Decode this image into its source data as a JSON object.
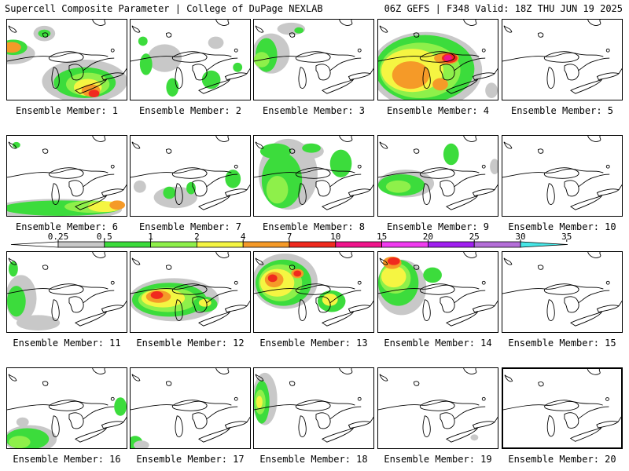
{
  "header": {
    "left_title": "Supercell Composite Parameter | College of DuPage NEXLAB",
    "right_title": "06Z GEFS | F348 Valid: 18Z THU JUN 19 2025"
  },
  "member_label_prefix": "Ensemble Member: ",
  "colorbar": {
    "ticks": [
      "0.25",
      "0.5",
      "1",
      "2",
      "4",
      "7",
      "10",
      "15",
      "20",
      "25",
      "30",
      "35"
    ],
    "colors": [
      "#c8c8c8",
      "#3cdc3c",
      "#8ef04a",
      "#f5f542",
      "#f59a28",
      "#f02a1e",
      "#f0148c",
      "#f03cf0",
      "#a020f0",
      "#b46ed8",
      "#46e6e6"
    ]
  },
  "palette": {
    "gray": "#c8c8c8",
    "green": "#3cdc3c",
    "lightgreen": "#8ef04a",
    "yellow": "#f5f542",
    "orange": "#f59a28",
    "red": "#f02a1e",
    "magenta": "#f0148c"
  },
  "members": [
    {
      "id": "1",
      "highlight": false,
      "blobs": [
        [
          "gray",
          6,
          44,
          30,
          14
        ],
        [
          "green",
          8,
          36,
          18,
          10
        ],
        [
          "orange",
          6,
          36,
          12,
          7
        ],
        [
          "gray",
          100,
          80,
          55,
          28
        ],
        [
          "green",
          100,
          82,
          40,
          20
        ],
        [
          "lightgreen",
          104,
          84,
          28,
          15
        ],
        [
          "yellow",
          104,
          88,
          18,
          11
        ],
        [
          "orange",
          108,
          92,
          12,
          8
        ],
        [
          "red",
          112,
          96,
          7,
          5
        ],
        [
          "gray",
          48,
          18,
          14,
          10
        ],
        [
          "green",
          48,
          18,
          8,
          5
        ]
      ]
    },
    {
      "id": "2",
      "highlight": false,
      "blobs": [
        [
          "gray",
          44,
          50,
          22,
          18
        ],
        [
          "green",
          20,
          58,
          8,
          14
        ],
        [
          "green",
          54,
          88,
          8,
          12
        ],
        [
          "green",
          104,
          78,
          12,
          12
        ],
        [
          "green",
          16,
          28,
          6,
          6
        ],
        [
          "green",
          138,
          62,
          6,
          6
        ],
        [
          "gray",
          110,
          30,
          10,
          8
        ]
      ]
    },
    {
      "id": "3",
      "highlight": false,
      "blobs": [
        [
          "gray",
          22,
          44,
          24,
          26
        ],
        [
          "green",
          16,
          46,
          14,
          22
        ],
        [
          "lightgreen",
          10,
          52,
          10,
          10
        ],
        [
          "gray",
          48,
          12,
          18,
          8
        ],
        [
          "green",
          58,
          14,
          6,
          4
        ]
      ]
    },
    {
      "id": "4",
      "highlight": false,
      "blobs": [
        [
          "gray",
          62,
          66,
          72,
          50
        ],
        [
          "green",
          60,
          64,
          64,
          44
        ],
        [
          "lightgreen",
          54,
          66,
          52,
          36
        ],
        [
          "yellow",
          44,
          66,
          40,
          28
        ],
        [
          "orange",
          42,
          72,
          24,
          18
        ],
        [
          "orange",
          88,
          50,
          16,
          8
        ],
        [
          "red",
          92,
          50,
          10,
          6
        ],
        [
          "orange",
          80,
          84,
          10,
          8
        ],
        [
          "magenta",
          90,
          50,
          5,
          4
        ],
        [
          "gray",
          146,
          92,
          8,
          10
        ]
      ]
    },
    {
      "id": "5",
      "highlight": false,
      "blobs": []
    },
    {
      "id": "6",
      "highlight": false,
      "blobs": [
        [
          "gray",
          64,
          96,
          84,
          14
        ],
        [
          "green",
          70,
          94,
          76,
          10
        ],
        [
          "lightgreen",
          110,
          92,
          36,
          8
        ],
        [
          "yellow",
          126,
          92,
          22,
          7
        ],
        [
          "orange",
          142,
          90,
          10,
          6
        ],
        [
          "green",
          12,
          12,
          5,
          4
        ]
      ]
    },
    {
      "id": "7",
      "highlight": false,
      "blobs": [
        [
          "gray",
          58,
          80,
          28,
          14
        ],
        [
          "green",
          50,
          74,
          8,
          8
        ],
        [
          "green",
          78,
          68,
          6,
          8
        ],
        [
          "green",
          132,
          56,
          10,
          12
        ],
        [
          "gray",
          12,
          66,
          8,
          8
        ]
      ]
    },
    {
      "id": "8",
      "highlight": false,
      "blobs": [
        [
          "gray",
          44,
          50,
          38,
          46
        ],
        [
          "green",
          36,
          58,
          26,
          36
        ],
        [
          "lightgreen",
          30,
          70,
          14,
          18
        ],
        [
          "green",
          28,
          20,
          20,
          10
        ],
        [
          "green",
          112,
          36,
          14,
          18
        ],
        [
          "gray",
          72,
          20,
          18,
          10
        ],
        [
          "green",
          74,
          16,
          12,
          6
        ]
      ]
    },
    {
      "id": "9",
      "highlight": false,
      "blobs": [
        [
          "gray",
          36,
          62,
          36,
          18
        ],
        [
          "green",
          30,
          64,
          30,
          14
        ],
        [
          "lightgreen",
          26,
          66,
          16,
          8
        ],
        [
          "green",
          94,
          24,
          10,
          14
        ],
        [
          "gray",
          150,
          40,
          6,
          10
        ]
      ]
    },
    {
      "id": "10",
      "highlight": false,
      "blobs": []
    },
    {
      "id": "11",
      "highlight": false,
      "blobs": [
        [
          "gray",
          18,
          60,
          20,
          30
        ],
        [
          "green",
          12,
          64,
          12,
          20
        ],
        [
          "gray",
          40,
          92,
          28,
          10
        ],
        [
          "green",
          8,
          22,
          6,
          10
        ]
      ]
    },
    {
      "id": "12",
      "highlight": false,
      "blobs": [
        [
          "gray",
          56,
          62,
          58,
          28
        ],
        [
          "green",
          50,
          62,
          48,
          22
        ],
        [
          "lightgreen",
          48,
          62,
          38,
          16
        ],
        [
          "yellow",
          42,
          60,
          28,
          12
        ],
        [
          "orange",
          36,
          58,
          16,
          8
        ],
        [
          "red",
          34,
          56,
          8,
          5
        ],
        [
          "green",
          96,
          68,
          16,
          10
        ],
        [
          "yellow",
          96,
          66,
          8,
          5
        ]
      ]
    },
    {
      "id": "13",
      "highlight": false,
      "blobs": [
        [
          "gray",
          40,
          38,
          42,
          36
        ],
        [
          "green",
          38,
          40,
          36,
          30
        ],
        [
          "lightgreen",
          34,
          40,
          28,
          24
        ],
        [
          "yellow",
          30,
          40,
          22,
          18
        ],
        [
          "orange",
          26,
          36,
          12,
          10
        ],
        [
          "red",
          24,
          34,
          6,
          5
        ],
        [
          "orange",
          56,
          28,
          8,
          6
        ],
        [
          "red",
          56,
          28,
          5,
          4
        ],
        [
          "green",
          100,
          64,
          18,
          14
        ],
        [
          "yellow",
          98,
          62,
          10,
          8
        ]
      ]
    },
    {
      "id": "14",
      "highlight": false,
      "blobs": [
        [
          "gray",
          30,
          46,
          32,
          36
        ],
        [
          "green",
          26,
          40,
          26,
          30
        ],
        [
          "lightgreen",
          22,
          34,
          20,
          20
        ],
        [
          "yellow",
          20,
          32,
          16,
          14
        ],
        [
          "orange",
          18,
          14,
          12,
          8
        ],
        [
          "red",
          20,
          12,
          8,
          5
        ],
        [
          "green",
          70,
          30,
          12,
          10
        ]
      ]
    },
    {
      "id": "15",
      "highlight": false,
      "blobs": []
    },
    {
      "id": "16",
      "highlight": false,
      "blobs": [
        [
          "gray",
          30,
          92,
          34,
          18
        ],
        [
          "green",
          26,
          92,
          28,
          14
        ],
        [
          "lightgreen",
          16,
          96,
          14,
          8
        ],
        [
          "green",
          146,
          50,
          8,
          12
        ],
        [
          "gray",
          20,
          70,
          8,
          6
        ]
      ]
    },
    {
      "id": "17",
      "highlight": false,
      "blobs": [
        [
          "green",
          6,
          98,
          10,
          10
        ],
        [
          "gray",
          14,
          100,
          10,
          6
        ]
      ]
    },
    {
      "id": "18",
      "highlight": false,
      "blobs": [
        [
          "gray",
          14,
          40,
          16,
          34
        ],
        [
          "green",
          10,
          44,
          10,
          28
        ],
        [
          "lightgreen",
          8,
          44,
          7,
          16
        ],
        [
          "yellow",
          7,
          44,
          4,
          8
        ]
      ]
    },
    {
      "id": "19",
      "highlight": false,
      "blobs": [
        [
          "gray",
          124,
          90,
          5,
          4
        ]
      ]
    },
    {
      "id": "20",
      "highlight": true,
      "blobs": []
    }
  ]
}
